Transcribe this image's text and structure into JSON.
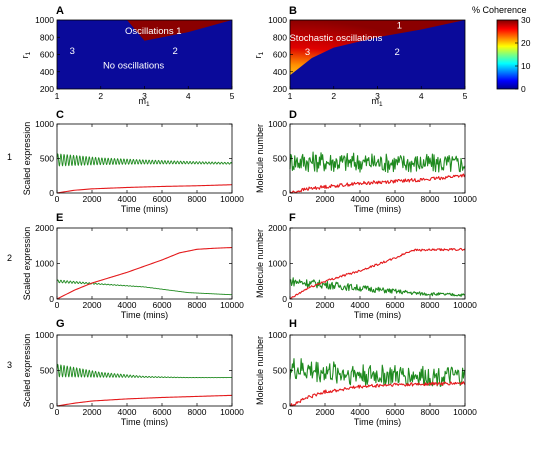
{
  "figure": {
    "row_labels": [
      "1",
      "2",
      "3"
    ],
    "colorbar": {
      "title": "% Coherence",
      "ticks": [
        0,
        10,
        20,
        30
      ],
      "range": [
        0,
        30
      ]
    }
  },
  "colors": {
    "green": "#1f8a1f",
    "red": "#e41a1c",
    "deep_blue": "#0a0a9a",
    "dark_red": "#8b0000"
  },
  "chart_data": [
    {
      "id": "A",
      "type": "heatmap",
      "xlabel": "m",
      "xlabel_sub": "1",
      "ylabel": "r",
      "ylabel_sub": "1",
      "xlim": [
        1,
        5
      ],
      "ylim": [
        200,
        1000
      ],
      "xticks": [
        1,
        2,
        3,
        4,
        5
      ],
      "yticks": [
        200,
        400,
        600,
        800,
        1000
      ],
      "annotations": [
        {
          "text": "Oscillations 1",
          "x": 3.2,
          "y": 870
        },
        {
          "text": "3",
          "x": 1.35,
          "y": 640
        },
        {
          "text": "2",
          "x": 3.7,
          "y": 640
        },
        {
          "text": "No oscillations",
          "x": 2.75,
          "y": 470
        }
      ],
      "region_boundary": {
        "m": [
          2.6,
          3.0,
          4.0,
          5.0
        ],
        "r": [
          1000,
          760,
          860,
          1000
        ]
      }
    },
    {
      "id": "B",
      "type": "heatmap",
      "xlabel": "m",
      "xlabel_sub": "1",
      "ylabel": "r",
      "ylabel_sub": "1",
      "xlim": [
        1,
        5
      ],
      "ylim": [
        200,
        1000
      ],
      "xticks": [
        1,
        2,
        3,
        4,
        5
      ],
      "yticks": [
        200,
        400,
        600,
        800,
        1000
      ],
      "annotations": [
        {
          "text": "1",
          "x": 3.5,
          "y": 935
        },
        {
          "text": "Stochastic oscillations",
          "x": 2.05,
          "y": 790
        },
        {
          "text": "3",
          "x": 1.4,
          "y": 630
        },
        {
          "text": "2",
          "x": 3.45,
          "y": 630
        }
      ],
      "region_boundary": {
        "m": [
          1.0,
          1.5,
          2.0,
          3.0,
          4.0,
          5.0
        ],
        "r": [
          360,
          560,
          680,
          800,
          890,
          1000
        ]
      }
    },
    {
      "id": "C",
      "type": "line",
      "ylabel": "Scaled expression",
      "xlabel": "Time (mins)",
      "xlim": [
        0,
        10000
      ],
      "ylim": [
        0,
        1000
      ],
      "xticks": [
        0,
        2000,
        4000,
        6000,
        8000,
        10000
      ],
      "yticks": [
        0,
        500,
        1000
      ],
      "series": [
        {
          "color": "green",
          "kind": "damped",
          "mean": [
            480,
            460,
            450,
            440,
            430
          ],
          "amp": [
            90,
            50,
            30,
            18,
            12
          ],
          "noise": 0
        },
        {
          "color": "red",
          "kind": "smooth",
          "x": [
            0,
            1000,
            2000,
            4000,
            6000,
            8000,
            10000
          ],
          "y": [
            0,
            40,
            60,
            80,
            95,
            105,
            120
          ]
        }
      ]
    },
    {
      "id": "D",
      "type": "line",
      "ylabel": "Molecule number",
      "xlabel": "Time (mins)",
      "xlim": [
        0,
        10000
      ],
      "ylim": [
        0,
        1000
      ],
      "xticks": [
        0,
        2000,
        4000,
        6000,
        8000,
        10000
      ],
      "yticks": [
        0,
        500,
        1000
      ],
      "series": [
        {
          "color": "green",
          "kind": "noisy",
          "mean": [
            460,
            450,
            440,
            430,
            420
          ],
          "amp": [
            150,
            150,
            140,
            140,
            140
          ],
          "noise": 1
        },
        {
          "color": "red",
          "kind": "noisy_trend",
          "x": [
            0,
            1000,
            2000,
            4000,
            6000,
            8000,
            10000
          ],
          "y": [
            0,
            60,
            90,
            140,
            170,
            200,
            260
          ],
          "noise": 25
        }
      ]
    },
    {
      "id": "E",
      "type": "line",
      "ylabel": "Scaled expression",
      "xlabel": "Time (mins)",
      "xlim": [
        0,
        10000
      ],
      "ylim": [
        0,
        2000
      ],
      "xticks": [
        0,
        2000,
        4000,
        6000,
        8000,
        10000
      ],
      "yticks": [
        0,
        1000,
        2000
      ],
      "series": [
        {
          "color": "green",
          "kind": "damped",
          "mean": [
            500,
            420,
            340,
            180,
            120
          ],
          "amp": [
            40,
            12,
            4,
            0,
            0
          ],
          "noise": 0
        },
        {
          "color": "red",
          "kind": "smooth",
          "x": [
            0,
            1000,
            2000,
            4000,
            6000,
            7000,
            8000,
            9000,
            10000
          ],
          "y": [
            0,
            250,
            450,
            750,
            1100,
            1300,
            1400,
            1430,
            1450
          ]
        }
      ]
    },
    {
      "id": "F",
      "type": "line",
      "ylabel": "Molecule number",
      "xlabel": "Time (mins)",
      "xlim": [
        0,
        10000
      ],
      "ylim": [
        0,
        2000
      ],
      "xticks": [
        0,
        2000,
        4000,
        6000,
        8000,
        10000
      ],
      "yticks": [
        0,
        1000,
        2000
      ],
      "series": [
        {
          "color": "green",
          "kind": "noisy",
          "mean": [
            500,
            380,
            260,
            150,
            110
          ],
          "amp": [
            130,
            110,
            80,
            50,
            40
          ],
          "noise": 1
        },
        {
          "color": "red",
          "kind": "noisy_trend",
          "x": [
            0,
            1000,
            2000,
            4000,
            6000,
            7000,
            8000,
            10000
          ],
          "y": [
            0,
            300,
            500,
            800,
            1150,
            1380,
            1380,
            1400
          ],
          "noise": 30
        }
      ]
    },
    {
      "id": "G",
      "type": "line",
      "ylabel": "Scaled expression",
      "xlabel": "Time (mins)",
      "xlim": [
        0,
        10000
      ],
      "ylim": [
        0,
        1000
      ],
      "xticks": [
        0,
        2000,
        4000,
        6000,
        8000,
        10000
      ],
      "yticks": [
        0,
        500,
        1000
      ],
      "series": [
        {
          "color": "green",
          "kind": "damped",
          "mean": [
            500,
            440,
            410,
            400,
            400
          ],
          "amp": [
            90,
            35,
            8,
            2,
            0
          ],
          "noise": 0
        },
        {
          "color": "red",
          "kind": "smooth",
          "x": [
            0,
            1000,
            2000,
            4000,
            6000,
            8000,
            10000
          ],
          "y": [
            0,
            40,
            70,
            100,
            120,
            135,
            150
          ]
        }
      ]
    },
    {
      "id": "H",
      "type": "line",
      "ylabel": "Molecule number",
      "xlabel": "Time (mins)",
      "xlim": [
        0,
        10000
      ],
      "ylim": [
        0,
        1000
      ],
      "xticks": [
        0,
        2000,
        4000,
        6000,
        8000,
        10000
      ],
      "yticks": [
        0,
        500,
        1000
      ],
      "series": [
        {
          "color": "green",
          "kind": "noisy",
          "mean": [
            520,
            470,
            430,
            420,
            410
          ],
          "amp": [
            170,
            160,
            150,
            140,
            140
          ],
          "noise": 1
        },
        {
          "color": "red",
          "kind": "noisy_trend",
          "x": [
            0,
            1000,
            2000,
            4000,
            6000,
            8000,
            10000
          ],
          "y": [
            0,
            120,
            200,
            270,
            300,
            310,
            320
          ],
          "noise": 25
        }
      ]
    }
  ]
}
